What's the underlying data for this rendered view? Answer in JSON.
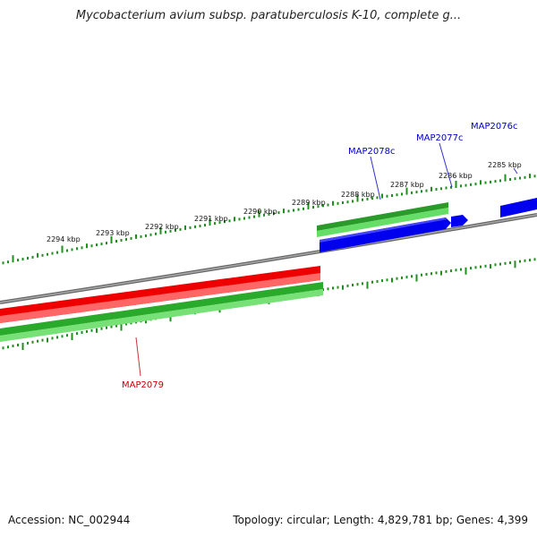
{
  "title": "Mycobacterium avium subsp. paratuberculosis K-10, complete g...",
  "footer": {
    "accession": "Accession: NC_002944",
    "summary": "Topology: circular; Length: 4,829,781 bp; Genes: 4,399"
  },
  "colors": {
    "backbone": "#808080",
    "forward_cds": "#0000ee",
    "reverse_cds": "#ee0000",
    "gene": "#22aa22",
    "ticks": "#1f8f1f",
    "forward_label": "#0000cc",
    "reverse_label": "#cc0000"
  },
  "ruler": {
    "major_labels": [
      "2294 kbp",
      "2293 kbp",
      "2292 kbp",
      "2291 kbp",
      "2290 kbp",
      "2289 kbp",
      "2288 kbp",
      "2287 kbp",
      "2286 kbp",
      "2285 kbp"
    ]
  },
  "features": [
    {
      "name": "MAP2076c",
      "strand": "forward"
    },
    {
      "name": "MAP2077c",
      "strand": "forward"
    },
    {
      "name": "MAP2078c",
      "strand": "forward"
    },
    {
      "name": "MAP2079",
      "strand": "reverse"
    }
  ]
}
